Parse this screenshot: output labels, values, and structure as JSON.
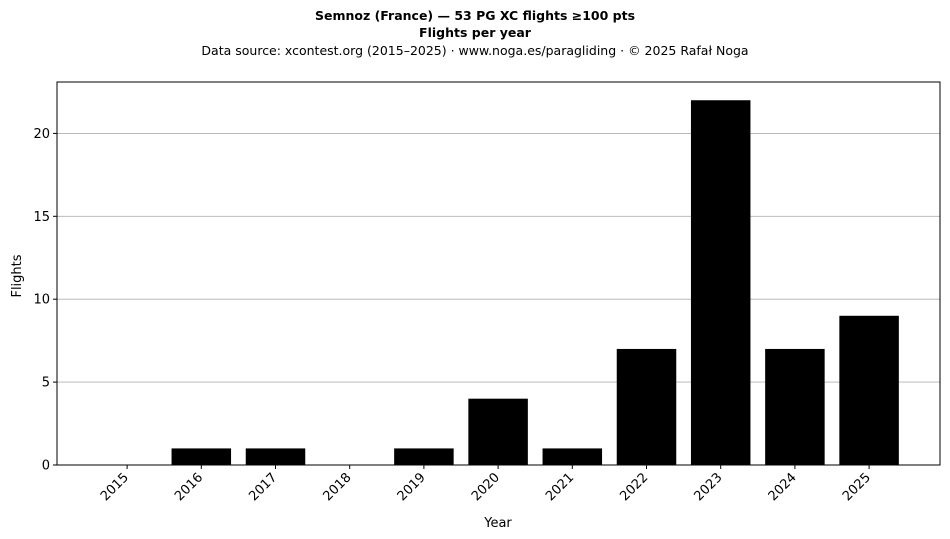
{
  "chart_data": {
    "type": "bar",
    "title": "Semnoz (France)  —  53 PG XC flights ≥100 pts",
    "subtitle": "Flights per year",
    "source": "Data source: xcontest.org (2015–2025)  ·  www.noga.es/paragliding  ·  © 2025 Rafał Noga",
    "xlabel": "Year",
    "ylabel": "Flights",
    "categories": [
      "2015",
      "2016",
      "2017",
      "2018",
      "2019",
      "2020",
      "2021",
      "2022",
      "2023",
      "2024",
      "2025"
    ],
    "values": [
      0,
      1,
      1,
      0,
      1,
      4,
      1,
      7,
      22,
      7,
      9
    ],
    "ylim": [
      0,
      23.1
    ],
    "yticks": [
      "0",
      "5",
      "10",
      "15",
      "20"
    ],
    "grid": "y",
    "bar_color": "#000000"
  }
}
